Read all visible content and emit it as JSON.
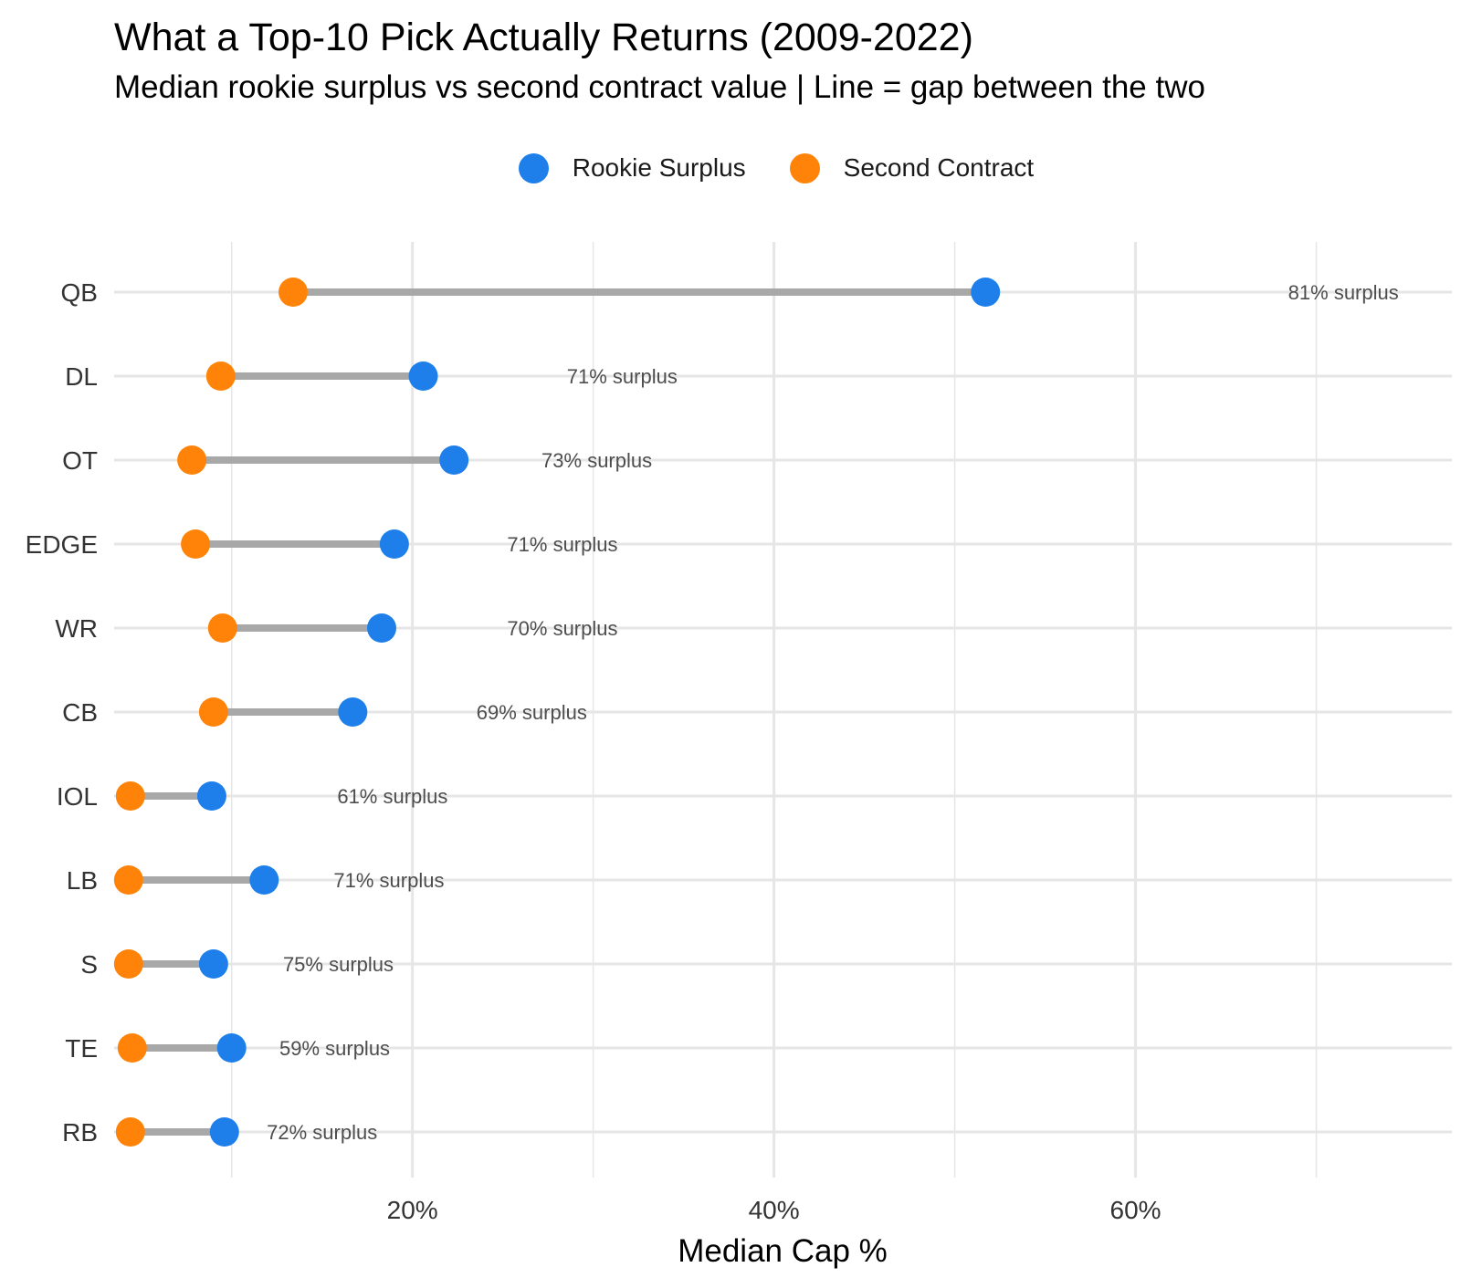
{
  "chart": {
    "title": "What a Top-10 Pick Actually Returns (2009-2022)",
    "subtitle": "Median rookie surplus vs second contract value | Line = gap between the two"
  },
  "legend": {
    "rookie_label": "Rookie Surplus",
    "second_label": "Second Contract"
  },
  "colors": {
    "rookie": "#1E7FEA",
    "second": "#FF8308",
    "segment": "#A8A8A8",
    "grid": "#E6E6E6"
  },
  "chart_data": {
    "type": "dumbbell",
    "title": "What a Top-10 Pick Actually Returns (2009-2022)",
    "subtitle": "Median rookie surplus vs second contract value | Line = gap between the two",
    "xlabel": "Median Cap %",
    "ylabel": "",
    "xlim": [
      3.5,
      77.5
    ],
    "x_ticks": [
      20,
      40,
      60
    ],
    "x_tick_labels": [
      "20%",
      "40%",
      "60%"
    ],
    "x_minor_ticks": [
      10,
      30,
      50,
      70
    ],
    "grid": true,
    "legend_position": "top",
    "categories": [
      "QB",
      "DL",
      "OT",
      "EDGE",
      "WR",
      "CB",
      "IOL",
      "LB",
      "S",
      "TE",
      "RB"
    ],
    "series": [
      {
        "name": "Rookie Surplus",
        "values": [
          51.7,
          20.6,
          22.3,
          19.0,
          18.3,
          16.7,
          8.9,
          11.8,
          9.0,
          10.0,
          9.6
        ]
      },
      {
        "name": "Second Contract",
        "values": [
          13.4,
          9.4,
          7.8,
          8.0,
          9.5,
          9.0,
          4.4,
          4.3,
          4.3,
          4.5,
          4.4
        ]
      }
    ],
    "annotations": [
      {
        "category": "QB",
        "x": 71.5,
        "text": "81% surplus"
      },
      {
        "category": "DL",
        "x": 31.6,
        "text": "71% surplus"
      },
      {
        "category": "OT",
        "x": 30.2,
        "text": "73% surplus"
      },
      {
        "category": "EDGE",
        "x": 28.3,
        "text": "71% surplus"
      },
      {
        "category": "WR",
        "x": 28.3,
        "text": "70% surplus"
      },
      {
        "category": "CB",
        "x": 26.6,
        "text": "69% surplus"
      },
      {
        "category": "IOL",
        "x": 18.9,
        "text": "61% surplus"
      },
      {
        "category": "LB",
        "x": 18.7,
        "text": "71% surplus"
      },
      {
        "category": "S",
        "x": 15.9,
        "text": "75% surplus"
      },
      {
        "category": "TE",
        "x": 15.7,
        "text": "59% surplus"
      },
      {
        "category": "RB",
        "x": 15.0,
        "text": "72% surplus"
      }
    ]
  }
}
